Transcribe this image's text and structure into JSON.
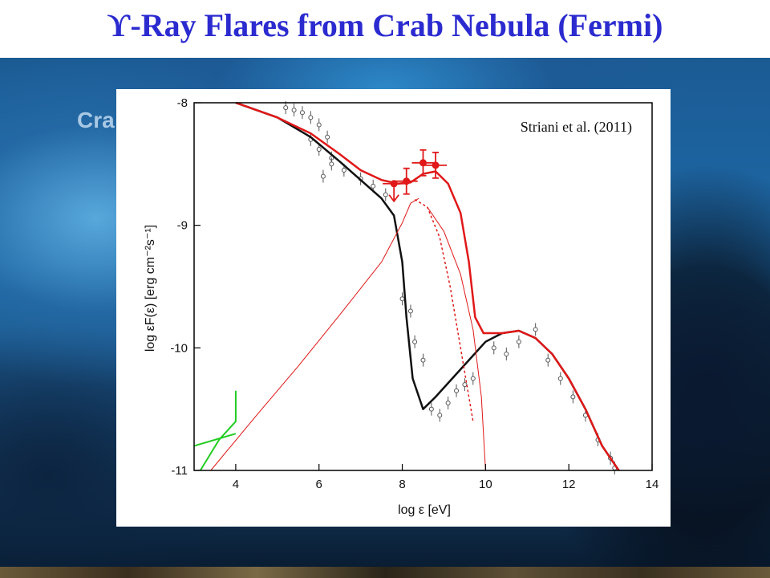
{
  "slide": {
    "title_symbol": "ϒ",
    "title_text": "-Ray Flares from Crab Nebula (Fermi)",
    "background_text": "Cra"
  },
  "chart_data": {
    "type": "line",
    "annotation": "Striani et al. (2011)",
    "xlabel": "log ε [eV]",
    "ylabel": "log εF(ε) [erg cm⁻²s⁻¹]",
    "xlim": [
      3,
      14
    ],
    "ylim": [
      -11,
      -8
    ],
    "xticks": [
      4,
      6,
      8,
      10,
      12,
      14
    ],
    "yticks": [
      -8,
      -9,
      -10,
      -11
    ],
    "grid": false,
    "colors": {
      "flare": "#e01818",
      "quiescent": "#111111",
      "optical": "#22cc22",
      "data": "#555555"
    },
    "series": [
      {
        "values": [
          [
            4.0,
            -8.0
          ],
          [
            5.0,
            -8.12
          ],
          [
            5.8,
            -8.28
          ],
          [
            6.5,
            -8.48
          ],
          [
            7.0,
            -8.63
          ],
          [
            7.5,
            -8.78
          ],
          [
            7.8,
            -8.92
          ],
          [
            8.0,
            -9.3
          ],
          [
            8.1,
            -9.75
          ],
          [
            8.25,
            -10.25
          ],
          [
            8.5,
            -10.5
          ],
          [
            8.8,
            -10.4
          ],
          [
            9.2,
            -10.25
          ],
          [
            9.6,
            -10.1
          ],
          [
            10.0,
            -9.95
          ],
          [
            10.4,
            -9.88
          ],
          [
            10.8,
            -9.86
          ],
          [
            11.2,
            -9.92
          ],
          [
            11.6,
            -10.05
          ],
          [
            12.0,
            -10.25
          ],
          [
            12.4,
            -10.5
          ],
          [
            12.8,
            -10.8
          ],
          [
            13.2,
            -11.0
          ]
        ]
      },
      {
        "values": [
          [
            4.0,
            -8.0
          ],
          [
            5.0,
            -8.12
          ],
          [
            5.8,
            -8.25
          ],
          [
            6.5,
            -8.42
          ],
          [
            7.0,
            -8.55
          ],
          [
            7.5,
            -8.63
          ],
          [
            7.9,
            -8.66
          ],
          [
            8.2,
            -8.65
          ],
          [
            8.5,
            -8.58
          ],
          [
            8.8,
            -8.56
          ],
          [
            9.1,
            -8.66
          ],
          [
            9.4,
            -8.9
          ],
          [
            9.6,
            -9.3
          ],
          [
            9.75,
            -9.75
          ],
          [
            9.95,
            -9.88
          ],
          [
            10.4,
            -9.88
          ],
          [
            10.8,
            -9.86
          ],
          [
            11.2,
            -9.92
          ],
          [
            11.6,
            -10.05
          ],
          [
            12.0,
            -10.25
          ],
          [
            12.4,
            -10.5
          ],
          [
            12.8,
            -10.8
          ],
          [
            13.2,
            -11.0
          ]
        ]
      },
      {
        "values": [
          [
            3.4,
            -11.0
          ],
          [
            4.5,
            -10.55
          ],
          [
            5.5,
            -10.15
          ],
          [
            6.5,
            -9.73
          ],
          [
            7.5,
            -9.3
          ],
          [
            8.0,
            -8.98
          ],
          [
            8.2,
            -8.82
          ],
          [
            8.4,
            -8.78
          ]
        ]
      },
      {
        "values": [
          [
            8.3,
            -8.79
          ],
          [
            8.6,
            -8.85
          ],
          [
            8.9,
            -9.1
          ],
          [
            9.15,
            -9.5
          ],
          [
            9.35,
            -9.9
          ],
          [
            9.55,
            -10.3
          ],
          [
            9.7,
            -10.6
          ]
        ]
      },
      {
        "values": [
          [
            8.6,
            -8.85
          ],
          [
            9.0,
            -9.05
          ],
          [
            9.4,
            -9.4
          ],
          [
            9.7,
            -9.85
          ],
          [
            9.9,
            -10.4
          ],
          [
            10.0,
            -11.0
          ]
        ]
      },
      {
        "values": [
          [
            3.15,
            -11.0
          ],
          [
            3.6,
            -10.75
          ],
          [
            4.0,
            -10.6
          ],
          [
            4.0,
            -10.35
          ]
        ]
      },
      {
        "values": [
          [
            3.0,
            -10.8
          ],
          [
            4.0,
            -10.7
          ]
        ]
      }
    ],
    "flare_points": [
      {
        "x": 7.8,
        "y": -8.66,
        "upper_limit": true
      },
      {
        "x": 8.1,
        "y": -8.64
      },
      {
        "x": 8.5,
        "y": -8.49
      },
      {
        "x": 8.8,
        "y": -8.51
      }
    ],
    "data_points": [
      [
        5.2,
        -8.04
      ],
      [
        5.4,
        -8.06
      ],
      [
        5.6,
        -8.08
      ],
      [
        5.8,
        -8.12
      ],
      [
        6.0,
        -8.18
      ],
      [
        6.2,
        -8.28
      ],
      [
        5.8,
        -8.3
      ],
      [
        6.0,
        -8.38
      ],
      [
        6.3,
        -8.45
      ],
      [
        6.6,
        -8.55
      ],
      [
        7.0,
        -8.62
      ],
      [
        7.3,
        -8.68
      ],
      [
        7.6,
        -8.75
      ],
      [
        6.1,
        -8.6
      ],
      [
        6.3,
        -8.5
      ],
      [
        8.0,
        -9.6
      ],
      [
        8.2,
        -9.7
      ],
      [
        8.3,
        -9.95
      ],
      [
        8.5,
        -10.1
      ],
      [
        8.7,
        -10.5
      ],
      [
        8.9,
        -10.55
      ],
      [
        9.1,
        -10.45
      ],
      [
        9.3,
        -10.35
      ],
      [
        9.5,
        -10.3
      ],
      [
        9.7,
        -10.25
      ],
      [
        10.2,
        -10.0
      ],
      [
        10.5,
        -10.05
      ],
      [
        10.8,
        -9.95
      ],
      [
        11.2,
        -9.85
      ],
      [
        11.5,
        -10.1
      ],
      [
        11.8,
        -10.25
      ],
      [
        12.1,
        -10.4
      ],
      [
        12.4,
        -10.55
      ],
      [
        12.7,
        -10.75
      ],
      [
        13.0,
        -10.9
      ],
      [
        13.1,
        -10.98
      ]
    ]
  }
}
